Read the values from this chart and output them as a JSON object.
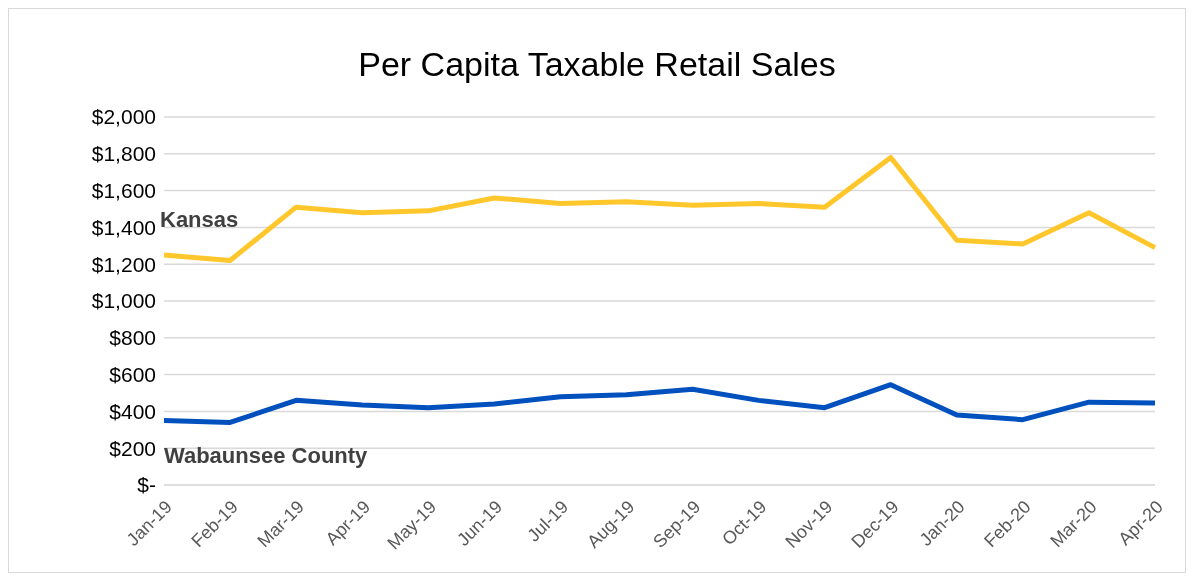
{
  "chart_data": {
    "type": "line",
    "title": "Per Capita Taxable Retail Sales",
    "categories": [
      "Jan-19",
      "Feb-19",
      "Mar-19",
      "Apr-19",
      "May-19",
      "Jun-19",
      "Jul-19",
      "Aug-19",
      "Sep-19",
      "Oct-19",
      "Nov-19",
      "Dec-19",
      "Jan-20",
      "Feb-20",
      "Mar-20",
      "Apr-20"
    ],
    "series": [
      {
        "name": "Kansas",
        "color": "#ffc72c",
        "values": [
          1250,
          1220,
          1510,
          1480,
          1490,
          1560,
          1530,
          1540,
          1520,
          1530,
          1510,
          1780,
          1330,
          1310,
          1480,
          1290
        ]
      },
      {
        "name": "Wabaunsee County",
        "color": "#0050be",
        "values": [
          350,
          340,
          460,
          435,
          420,
          440,
          480,
          490,
          520,
          460,
          420,
          545,
          380,
          355,
          450,
          445
        ]
      }
    ],
    "ylim": [
      0,
      2000
    ],
    "yticks": [
      {
        "value": 0,
        "label": "$-"
      },
      {
        "value": 200,
        "label": "$200"
      },
      {
        "value": 400,
        "label": "$400"
      },
      {
        "value": 600,
        "label": "$600"
      },
      {
        "value": 800,
        "label": "$800"
      },
      {
        "value": 1000,
        "label": "$1,000"
      },
      {
        "value": 1200,
        "label": "$1,200"
      },
      {
        "value": 1400,
        "label": "$1,400"
      },
      {
        "value": 1600,
        "label": "$1,600"
      },
      {
        "value": 1800,
        "label": "$1,800"
      },
      {
        "value": 2000,
        "label": "$2,000"
      }
    ],
    "grid": "y",
    "marker": "none",
    "line_style": "solid"
  }
}
